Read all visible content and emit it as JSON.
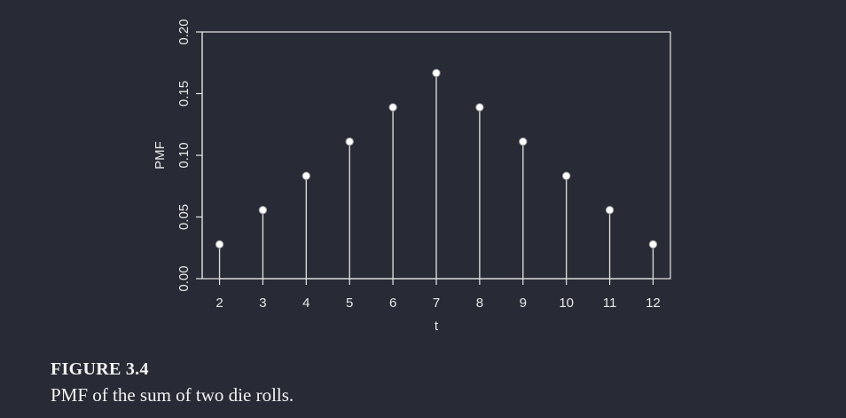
{
  "chart_data": {
    "type": "stem",
    "xlabel": "t",
    "ylabel": "PMF",
    "x": [
      2,
      3,
      4,
      5,
      6,
      7,
      8,
      9,
      10,
      11,
      12
    ],
    "values": [
      0.0278,
      0.0556,
      0.0833,
      0.1111,
      0.1389,
      0.1667,
      0.1389,
      0.1111,
      0.0833,
      0.0556,
      0.0278
    ],
    "x_ticks": [
      "2",
      "3",
      "4",
      "5",
      "6",
      "7",
      "8",
      "9",
      "10",
      "11",
      "12"
    ],
    "y_ticks": [
      "0.00",
      "0.05",
      "0.10",
      "0.15",
      "0.20"
    ],
    "y_tick_values": [
      0,
      0.05,
      0.1,
      0.15,
      0.2
    ],
    "xlim": [
      1.6,
      12.4
    ],
    "ylim": [
      0,
      0.2
    ],
    "grid": false,
    "colors": {
      "background": "#282a35",
      "foreground": "#e8e8e8",
      "marker_fill": "#ffffff"
    }
  },
  "caption": {
    "title": "FIGURE 3.4",
    "text": "PMF of the sum of two die rolls."
  }
}
